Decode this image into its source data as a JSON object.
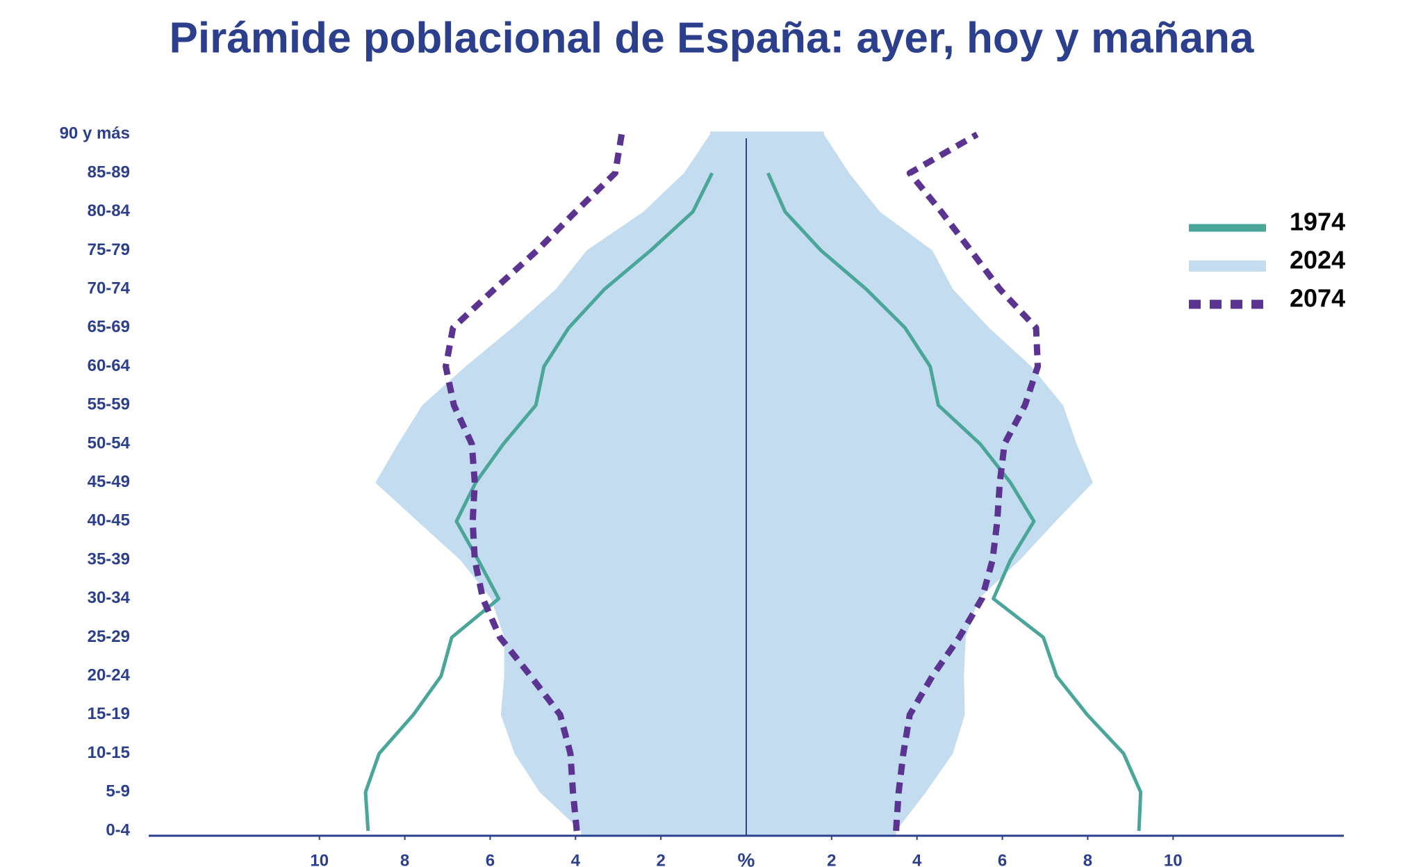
{
  "chart_data": {
    "type": "pyramid",
    "title": "Pirámide poblacional de España: ayer, hoy y mañana",
    "center_label": "%",
    "categories": [
      "0-4",
      "5-9",
      "10-15",
      "15-19",
      "20-24",
      "25-29",
      "30-34",
      "35-39",
      "40-45",
      "45-49",
      "50-54",
      "55-59",
      "60-64",
      "65-69",
      "70-74",
      "75-79",
      "80-84",
      "85-89",
      "90 y más"
    ],
    "xlim": [
      0,
      14
    ],
    "xticks": [
      2,
      4,
      6,
      8,
      10
    ],
    "series": [
      {
        "name": "1974",
        "color": "#4aa699",
        "style": "line",
        "left": [
          8.86,
          8.92,
          8.6,
          7.8,
          7.15,
          6.9,
          5.8,
          6.28,
          6.79,
          6.34,
          5.69,
          4.93,
          4.74,
          4.16,
          3.32,
          2.24,
          1.25,
          0.8,
          null
        ],
        "right": [
          9.2,
          9.24,
          8.84,
          7.99,
          7.27,
          6.96,
          5.79,
          6.19,
          6.74,
          6.19,
          5.48,
          4.5,
          4.31,
          3.72,
          2.81,
          1.75,
          0.91,
          0.51,
          null
        ]
      },
      {
        "name": "2024",
        "color": "#c3dcef",
        "style": "area",
        "left": [
          3.87,
          4.84,
          5.43,
          5.75,
          5.67,
          5.67,
          5.98,
          6.7,
          7.7,
          8.69,
          8.16,
          7.59,
          6.58,
          5.48,
          4.46,
          3.74,
          2.41,
          1.46,
          0.85
        ],
        "right": [
          3.51,
          4.21,
          4.84,
          5.12,
          5.1,
          5.14,
          5.45,
          6.41,
          7.25,
          8.12,
          7.74,
          7.42,
          6.68,
          5.69,
          4.84,
          4.36,
          3.13,
          2.41,
          1.82
        ]
      },
      {
        "name": "2074",
        "color": "#5b3390",
        "style": "dashed",
        "left": [
          3.97,
          4.06,
          4.12,
          4.36,
          5.05,
          5.77,
          6.17,
          6.36,
          6.41,
          6.36,
          6.43,
          6.85,
          7.04,
          6.87,
          5.9,
          4.9,
          4.0,
          3.07,
          2.92
        ],
        "right": [
          3.51,
          3.57,
          3.68,
          3.83,
          4.36,
          4.99,
          5.52,
          5.77,
          5.88,
          5.94,
          6.05,
          6.53,
          6.83,
          6.79,
          5.94,
          5.26,
          4.57,
          3.83,
          5.41
        ]
      }
    ]
  }
}
